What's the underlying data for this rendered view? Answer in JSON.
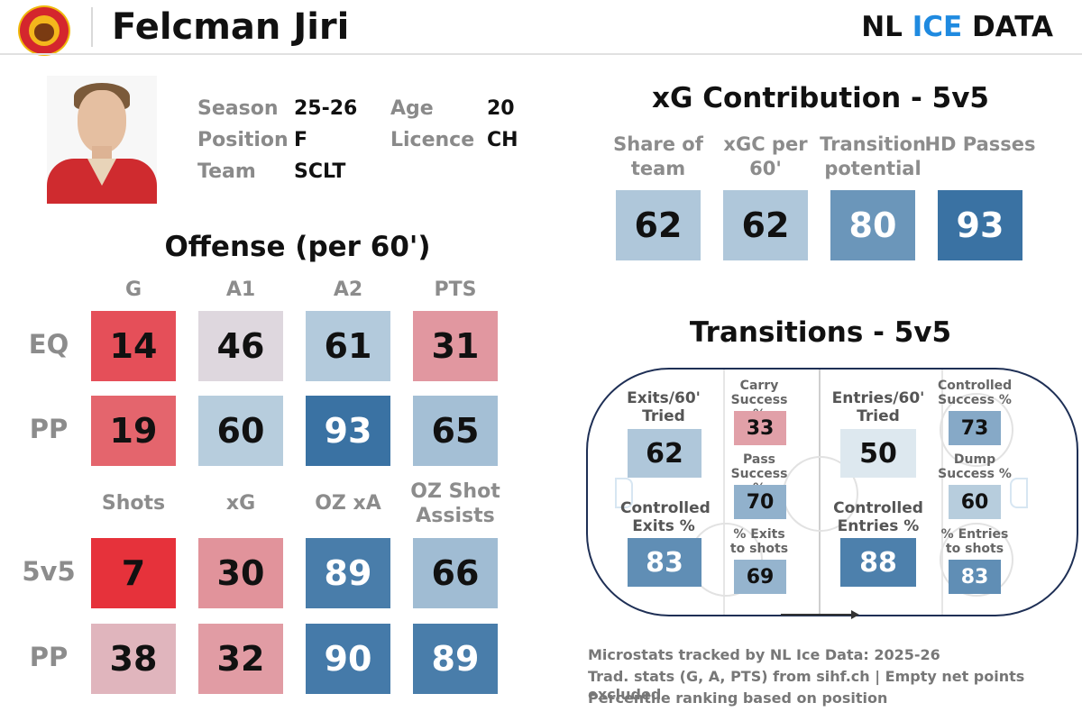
{
  "header": {
    "player_name": "Felcman Jiri",
    "brand_part1": "NL ",
    "brand_part2": "ICE",
    "brand_part3": " DATA",
    "team_logo": "sclt-tiger-logo"
  },
  "player_info": {
    "season_label": "Season",
    "season_value": "25-26",
    "position_label": "Position",
    "position_value": "F",
    "team_label": "Team",
    "team_value": "SCLT",
    "age_label": "Age",
    "age_value": "20",
    "licence_label": "Licence",
    "licence_value": "CH"
  },
  "offense": {
    "title": "Offense (per 60')",
    "headers_top": [
      "G",
      "A1",
      "A2",
      "PTS"
    ],
    "rows_top": [
      {
        "label": "EQ",
        "values": [
          14,
          46,
          61,
          31
        ]
      },
      {
        "label": "PP",
        "values": [
          19,
          60,
          93,
          65
        ]
      }
    ],
    "headers_bottom": [
      "Shots",
      "xG",
      "OZ xA",
      "OZ Shot Assists"
    ],
    "rows_bottom": [
      {
        "label": "5v5",
        "values": [
          7,
          30,
          89,
          66
        ]
      },
      {
        "label": "PP",
        "values": [
          38,
          32,
          90,
          89
        ]
      }
    ]
  },
  "xg": {
    "title": "xG Contribution - 5v5",
    "headers": [
      "Share of team",
      "xGC per 60'",
      "Transition potential",
      "HD Passes"
    ],
    "values": [
      62,
      62,
      80,
      93
    ]
  },
  "transitions": {
    "title": "Transitions - 5v5",
    "exits_tried_label": "Exits/60' Tried",
    "exits_tried": 62,
    "controlled_exits_label": "Controlled Exits %",
    "controlled_exits": 83,
    "carry_label": "Carry Success %",
    "carry": 33,
    "pass_label": "Pass Success %",
    "pass": 70,
    "exits_shots_label": "% Exits to shots",
    "exits_shots": 69,
    "entries_tried_label": "Entries/60' Tried",
    "entries_tried": 50,
    "controlled_entries_label": "Controlled Entries %",
    "controlled_entries": 88,
    "controlled_success_label": "Controlled Success %",
    "controlled_success": 73,
    "dump_label": "Dump Success %",
    "dump": 60,
    "entries_shots_label": "% Entries to shots",
    "entries_shots": 83
  },
  "footer": {
    "line1": "Microstats tracked by NL Ice Data: 2025-26",
    "line2": "Trad. stats (G, A, PTS) from sihf.ch | Empty net points excluded",
    "line3": "Percentile ranking based on position"
  },
  "chart_data": {
    "type": "heatmap",
    "title": "Felcman Jiri",
    "scale": "percentile ranking based on position (0-100)",
    "color_low": "#e8141e",
    "color_mid": "#dde8ef",
    "color_high": "#1f5f97",
    "tables": [
      {
        "name": "Offense (per 60')",
        "columns": [
          "G",
          "A1",
          "A2",
          "PTS"
        ],
        "rows": [
          "EQ",
          "PP"
        ],
        "values": [
          [
            14,
            46,
            61,
            31
          ],
          [
            19,
            60,
            93,
            65
          ]
        ]
      },
      {
        "name": "Offense (per 60')",
        "columns": [
          "Shots",
          "xG",
          "OZ xA",
          "OZ Shot Assists"
        ],
        "rows": [
          "5v5",
          "PP"
        ],
        "values": [
          [
            7,
            30,
            89,
            66
          ],
          [
            38,
            32,
            90,
            89
          ]
        ]
      },
      {
        "name": "xG Contribution - 5v5",
        "columns": [
          "Share of team",
          "xGC per 60'",
          "Transition potential",
          "HD Passes"
        ],
        "values": [
          [
            62,
            62,
            80,
            93
          ]
        ]
      },
      {
        "name": "Transitions - 5v5",
        "columns": [
          "Exits/60' Tried",
          "Controlled Exits %",
          "Carry Success %",
          "Pass Success %",
          "% Exits to shots",
          "Entries/60' Tried",
          "Controlled Entries %",
          "Controlled Success %",
          "Dump Success %",
          "% Entries to shots"
        ],
        "values": [
          [
            62,
            83,
            33,
            70,
            69,
            50,
            88,
            73,
            60,
            83
          ]
        ]
      }
    ]
  }
}
